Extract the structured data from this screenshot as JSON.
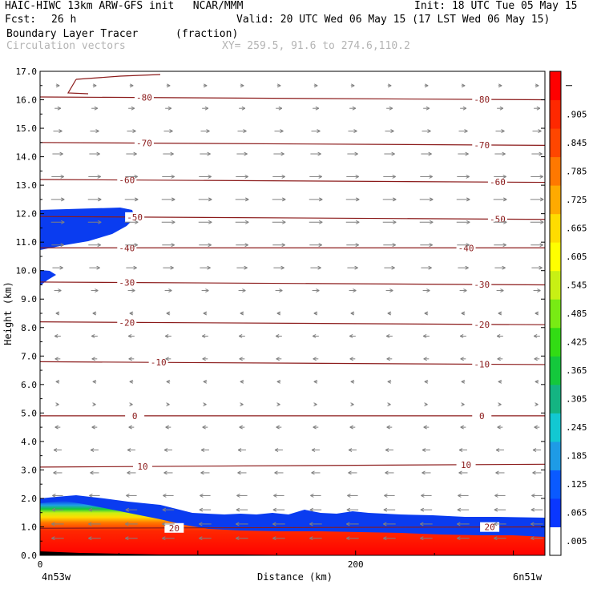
{
  "header": {
    "title_left": "HAIC-HIWC 13km ARW-GFS init   NCAR/MMM",
    "init": "Init: 18 UTC Tue 05 May 15",
    "fcst_label": "Fcst:",
    "fcst_value": "26 h",
    "valid": "Valid: 20 UTC Wed 06 May 15 (17 LST Wed 06 May 15)",
    "field_name": "Boundary Layer Tracer",
    "field_units": "(fraction)",
    "vector_label": "Circulation vectors",
    "xy_range": "XY= 259.5, 91.6 to 274.6,110.2"
  },
  "colors": {
    "contour": "#8b1a1a",
    "vector": "#808080",
    "fill_blue": "#0a3cf0"
  },
  "chart_data": {
    "type": "contour",
    "ylabel": "Height (km)",
    "xlabel": "Distance (km)",
    "x_left_label": "4n53w",
    "x_right_label": "6n51w",
    "xlim": [
      0,
      320
    ],
    "ylim": [
      0,
      17
    ],
    "xticks": [
      0,
      200
    ],
    "yticks": [
      "0.0",
      "1.0",
      "2.0",
      "3.0",
      "4.0",
      "5.0",
      "6.0",
      "7.0",
      "8.0",
      "9.0",
      "10.0",
      "11.0",
      "12.0",
      "13.0",
      "14.0",
      "15.0",
      "16.0",
      "17.0"
    ],
    "temperature_contours": [
      {
        "label": "-80",
        "y_left": 16.1,
        "y_right": 16.0,
        "label_x": [
          66,
          280
        ]
      },
      {
        "label": "-70",
        "y_left": 14.5,
        "y_right": 14.4,
        "label_x": [
          66,
          280
        ]
      },
      {
        "label": "-60",
        "y_left": 13.2,
        "y_right": 13.1,
        "label_x": [
          55,
          290
        ]
      },
      {
        "label": "-50",
        "y_left": 11.9,
        "y_right": 11.8,
        "label_x": [
          60,
          290
        ]
      },
      {
        "label": "-40",
        "y_left": 10.8,
        "y_right": 10.8,
        "label_x": [
          55,
          270
        ]
      },
      {
        "label": "-30",
        "y_left": 9.6,
        "y_right": 9.5,
        "label_x": [
          55,
          280
        ]
      },
      {
        "label": "-20",
        "y_left": 8.2,
        "y_right": 8.1,
        "label_x": [
          55,
          280
        ]
      },
      {
        "label": "-10",
        "y_left": 6.8,
        "y_right": 6.7,
        "label_x": [
          75,
          280
        ]
      },
      {
        "label": "0",
        "y_left": 4.9,
        "y_right": 4.9,
        "label_x": [
          60,
          280
        ]
      },
      {
        "label": "10",
        "y_left": 3.1,
        "y_right": 3.2,
        "label_x": [
          65,
          270
        ]
      },
      {
        "label": "20",
        "y_left": 0.95,
        "y_right": 1.0,
        "label_x": [
          85,
          285
        ]
      }
    ],
    "colorbar": {
      "levels": [
        ".005",
        ".065",
        ".125",
        ".185",
        ".245",
        ".305",
        ".365",
        ".425",
        ".485",
        ".545",
        ".605",
        ".665",
        ".725",
        ".785",
        ".845",
        ".905"
      ],
      "colors": [
        "#ffffff",
        "#0a37ff",
        "#0a5aff",
        "#1e9be6",
        "#12c8d2",
        "#14b482",
        "#14c83c",
        "#32dc14",
        "#78eb14",
        "#c8f014",
        "#ffff00",
        "#ffdc00",
        "#ffaa00",
        "#ff7800",
        "#ff4600",
        "#ff2800",
        "#ff0000"
      ]
    },
    "vector_rows": [
      16.5,
      15.7,
      14.9,
      14.1,
      13.3,
      12.5,
      11.7,
      10.9,
      10.1,
      9.3,
      8.5,
      7.7,
      6.9,
      6.1,
      5.3,
      4.5,
      3.7,
      2.9,
      2.1,
      1.6,
      1.1,
      0.6
    ],
    "vector_u": [
      0.2,
      0.35,
      0.5,
      0.6,
      0.7,
      0.75,
      0.75,
      0.7,
      0.6,
      0.4,
      -0.2,
      -0.35,
      -0.3,
      -0.2,
      0.1,
      -0.3,
      -0.45,
      -0.5,
      -0.6,
      -0.65,
      -0.7,
      -0.7
    ]
  }
}
